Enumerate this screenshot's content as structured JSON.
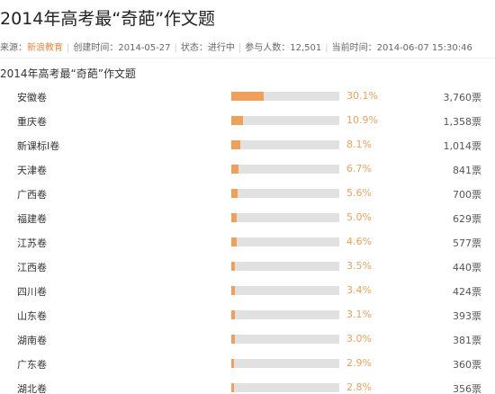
{
  "page": {
    "title": "2014年高考最“奇葩”作文题",
    "subtitle": "2014年高考最“奇葩”作文题"
  },
  "meta": {
    "source_label": "来源：",
    "source_value": "新浪教育",
    "created": "创建时间：2014-05-27",
    "status": "状态：进行中",
    "participants": "参与人数：12,501",
    "current_time": "当前时间：2014-06-07 15:30:46",
    "separator": "|"
  },
  "colors": {
    "bar_fill": "#f0a05a",
    "bar_track": "#e1e1e1",
    "percent_text": "#f0a05a",
    "source_link": "#e8833a"
  },
  "chart_data": {
    "type": "bar",
    "title": "2014年高考最“奇葩”作文题",
    "categories": [
      "安徽卷",
      "重庆卷",
      "新课标Ⅰ卷",
      "天津卷",
      "广西卷",
      "福建卷",
      "江苏卷",
      "江西卷",
      "四川卷",
      "山东卷",
      "湖南卷",
      "广东卷",
      "湖北卷"
    ],
    "values": [
      30.1,
      10.9,
      8.1,
      6.7,
      5.6,
      5.0,
      4.6,
      3.5,
      3.4,
      3.1,
      3.0,
      2.9,
      2.8
    ],
    "ylim": [
      0,
      100
    ],
    "percent_labels": [
      "30.1%",
      "10.9%",
      "8.1%",
      "6.7%",
      "5.6%",
      "5.0%",
      "4.6%",
      "3.5%",
      "3.4%",
      "3.1%",
      "3.0%",
      "2.9%",
      "2.8%"
    ],
    "vote_labels": [
      "3,760票",
      "1,358票",
      "1,014票",
      "841票",
      "700票",
      "629票",
      "577票",
      "440票",
      "424票",
      "393票",
      "381票",
      "360票",
      "356票"
    ]
  }
}
